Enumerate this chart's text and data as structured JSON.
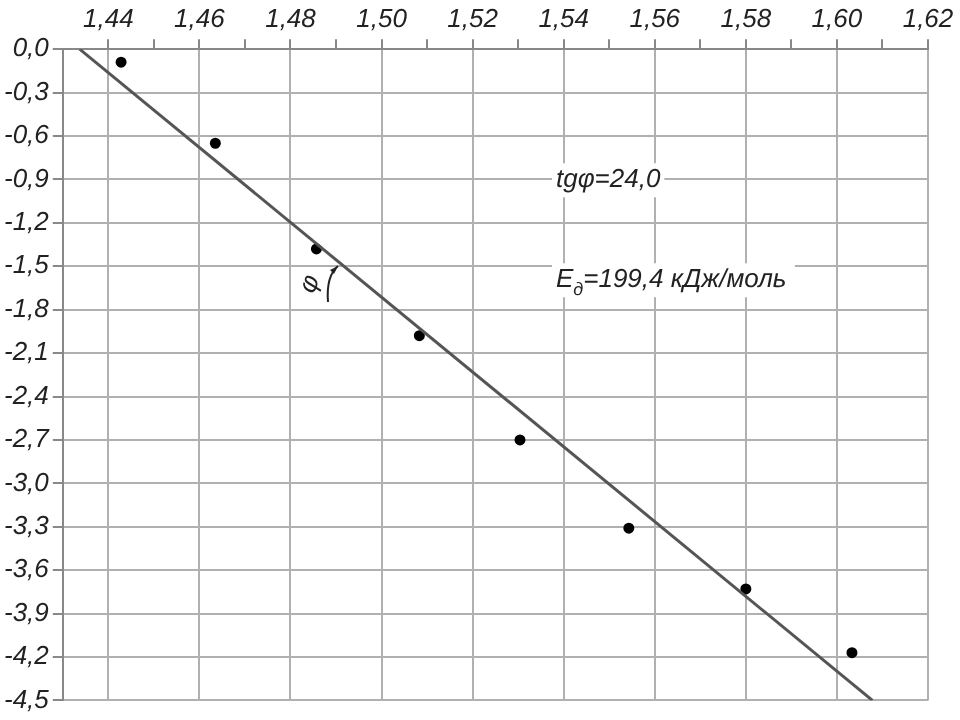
{
  "chart_data": {
    "type": "scatter",
    "xlim": [
      1.43,
      1.62
    ],
    "xticks": [
      {
        "value": 1.44,
        "label": "1,44"
      },
      {
        "value": 1.45,
        "label": null
      },
      {
        "value": 1.46,
        "label": "1,46"
      },
      {
        "value": 1.47,
        "label": null
      },
      {
        "value": 1.48,
        "label": "1,48"
      },
      {
        "value": 1.49,
        "label": null
      },
      {
        "value": 1.5,
        "label": "1,50"
      },
      {
        "value": 1.51,
        "label": null
      },
      {
        "value": 1.52,
        "label": "1,52"
      },
      {
        "value": 1.53,
        "label": null
      },
      {
        "value": 1.54,
        "label": "1,54"
      },
      {
        "value": 1.55,
        "label": null
      },
      {
        "value": 1.56,
        "label": "1,56"
      },
      {
        "value": 1.57,
        "label": null
      },
      {
        "value": 1.58,
        "label": "1,58"
      },
      {
        "value": 1.59,
        "label": null
      },
      {
        "value": 1.6,
        "label": "1,60"
      },
      {
        "value": 1.61,
        "label": null
      },
      {
        "value": 1.62,
        "label": "1,62"
      }
    ],
    "ylim": [
      -4.5,
      0
    ],
    "yticks": [
      {
        "value": 0,
        "label": "0,0"
      },
      {
        "value": -0.3,
        "label": "-0,3"
      },
      {
        "value": -0.6,
        "label": "-0,6"
      },
      {
        "value": -0.9,
        "label": "-0,9"
      },
      {
        "value": -1.2,
        "label": "-1,2"
      },
      {
        "value": -1.5,
        "label": "-1,5"
      },
      {
        "value": -1.8,
        "label": "-1,8"
      },
      {
        "value": -2.1,
        "label": "-2,1"
      },
      {
        "value": -2.4,
        "label": "-2,4"
      },
      {
        "value": -2.7,
        "label": "-2,7"
      },
      {
        "value": -3.0,
        "label": "-3,0"
      },
      {
        "value": -3.3,
        "label": "-3,3"
      },
      {
        "value": -3.6,
        "label": "-3,6"
      },
      {
        "value": -3.9,
        "label": "-3,9"
      },
      {
        "value": -4.2,
        "label": "-4,2"
      },
      {
        "value": -4.5,
        "label": "-4,5"
      }
    ],
    "grid": true,
    "legend": false,
    "series": [
      {
        "type": "line",
        "color": "#555555",
        "x": [
          1.4337,
          1.6078
        ],
        "values": [
          0,
          -4.5
        ],
        "marker": "none",
        "line_style": "solid"
      },
      {
        "color": "#000000",
        "marker": "circle",
        "x": [
          1.4428,
          1.4635,
          1.4857,
          1.5083,
          1.5304,
          1.5543,
          1.58,
          1.6033
        ],
        "values": [
          -0.09,
          -0.65,
          -1.38,
          -1.98,
          -2.7,
          -3.31,
          -3.73,
          -4.17
        ]
      }
    ],
    "annotations": [
      "tgφ=24,0",
      "E$_{д}$=199,4 кДж/моль",
      "φ"
    ]
  }
}
